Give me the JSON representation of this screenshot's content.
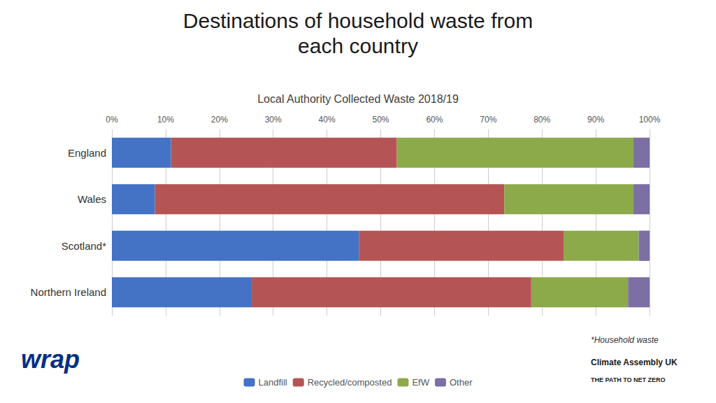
{
  "chart_data": {
    "type": "bar",
    "orientation": "horizontal",
    "stacked": true,
    "title": "Destinations of household waste from\neach country",
    "subtitle": "Local Authority Collected Waste 2018/19",
    "categories": [
      "England",
      "Wales",
      "Scotland*",
      "Northern Ireland"
    ],
    "series": [
      {
        "name": "Landfill",
        "color": "#4472C4",
        "values": [
          11,
          8,
          46,
          26
        ]
      },
      {
        "name": "Recycled/composted",
        "color": "#B55455",
        "values": [
          42,
          65,
          38,
          52
        ]
      },
      {
        "name": "EfW",
        "color": "#8DAA4A",
        "values": [
          44,
          24,
          14,
          18
        ]
      },
      {
        "name": "Other",
        "color": "#7B6FA4",
        "values": [
          3,
          3,
          2,
          4
        ]
      }
    ],
    "xlim": [
      0,
      100
    ],
    "xticks": [
      {
        "value": 0,
        "label": "0%"
      },
      {
        "value": 10,
        "label": "10%"
      },
      {
        "value": 20,
        "label": "20%"
      },
      {
        "value": 30,
        "label": "30%"
      },
      {
        "value": 40,
        "label": "40%"
      },
      {
        "value": 50,
        "label": "50%"
      },
      {
        "value": 60,
        "label": "60%"
      },
      {
        "value": 70,
        "label": "70%"
      },
      {
        "value": 80,
        "label": "80%"
      },
      {
        "value": 90,
        "label": "90%"
      },
      {
        "value": 100,
        "label": "100%"
      }
    ],
    "grid": true,
    "legend": "bottom",
    "annotations": [
      "*Household waste",
      "Climate Assembly UK",
      "THE PATH TO NET ZERO",
      "wrap"
    ]
  }
}
